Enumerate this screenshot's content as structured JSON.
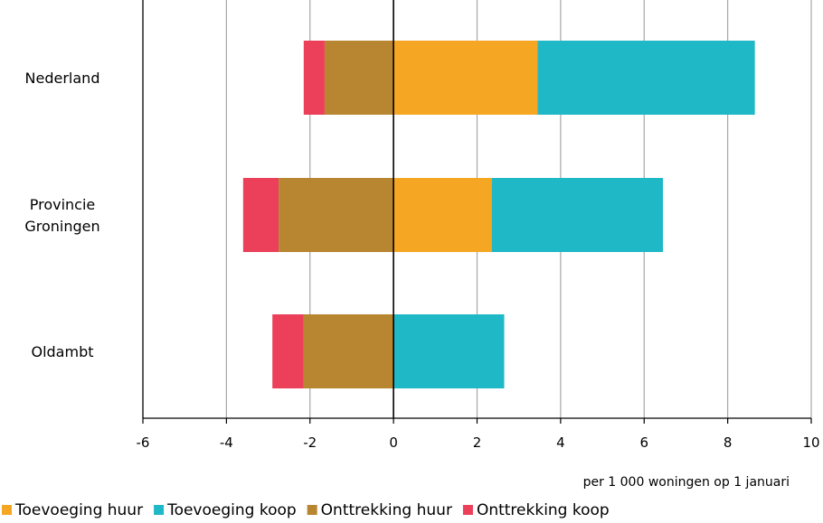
{
  "chart_data": {
    "type": "bar",
    "orientation": "horizontal",
    "stacked": true,
    "categories": [
      [
        "Nederland"
      ],
      [
        "Provincie",
        "Groningen"
      ],
      [
        "Oldambt"
      ]
    ],
    "series": [
      {
        "name": "Toevoeging huur",
        "color": "#f5a623",
        "values": [
          3.45,
          2.35,
          0
        ]
      },
      {
        "name": "Toevoeging koop",
        "color": "#1fb8c6",
        "values": [
          5.2,
          4.1,
          2.65
        ]
      },
      {
        "name": "Onttrekking huur",
        "color": "#b88630",
        "values": [
          -1.65,
          -2.75,
          -2.15
        ]
      },
      {
        "name": "Onttrekking koop",
        "color": "#eb3f5a",
        "values": [
          -0.5,
          -0.85,
          -0.75
        ]
      }
    ],
    "xlim": [
      -6,
      10
    ],
    "xticks": [
      -6,
      -4,
      -2,
      0,
      2,
      4,
      6,
      8,
      10
    ],
    "xlabel": "per 1 000 woningen op 1 januari",
    "grid": "vertical",
    "legend_position": "bottom"
  }
}
